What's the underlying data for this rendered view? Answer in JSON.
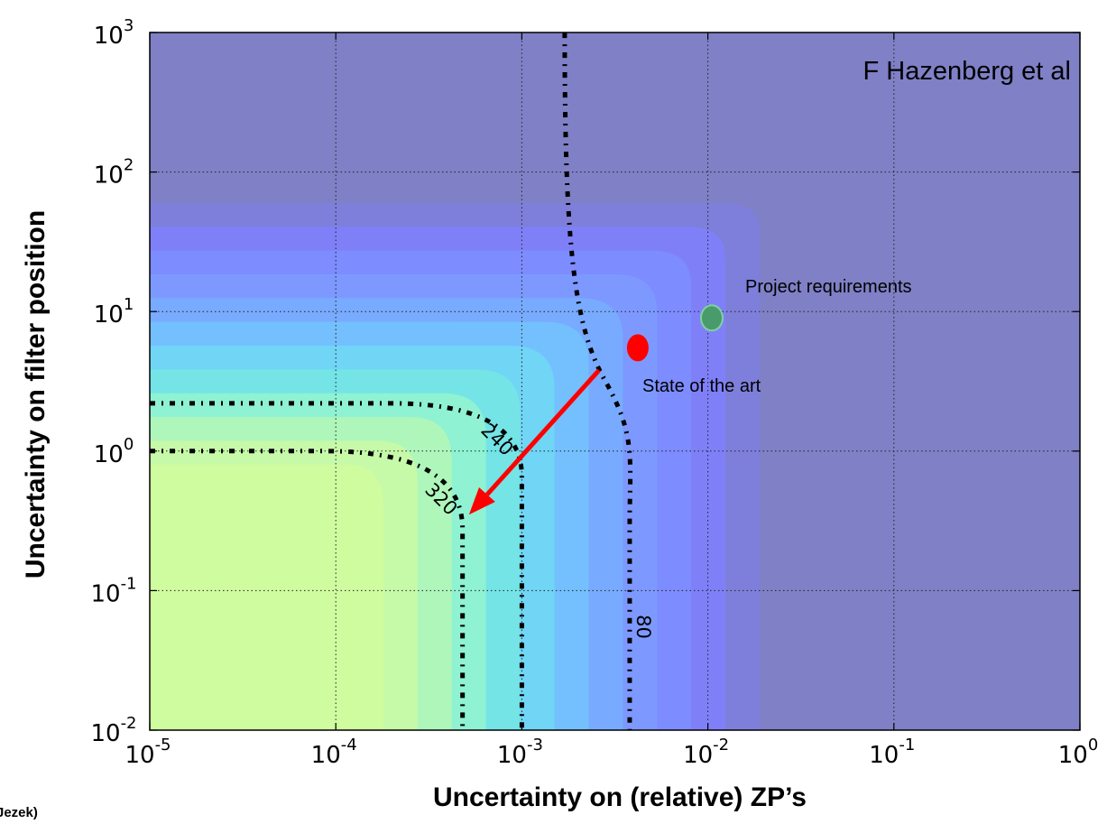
{
  "chart_data": {
    "type": "heatmap",
    "subtype": "filled contour plot, log-log axes",
    "title": "",
    "annotation_corner": "F Hazenberg et al",
    "xlabel": "Uncertainty on (relative) ZP’s",
    "ylabel": "Uncertainty on filter position",
    "xscale": "log",
    "yscale": "log",
    "xlim": [
      1e-05,
      1
    ],
    "ylim": [
      0.01,
      1000
    ],
    "grid": true,
    "x_tick_labels": [
      {
        "base": "10",
        "exp": "-5",
        "value": 1e-05
      },
      {
        "base": "10",
        "exp": "-4",
        "value": 0.0001
      },
      {
        "base": "10",
        "exp": "-3",
        "value": 0.001
      },
      {
        "base": "10",
        "exp": "-2",
        "value": 0.01
      },
      {
        "base": "10",
        "exp": "-1",
        "value": 0.1
      },
      {
        "base": "10",
        "exp": "0",
        "value": 1
      }
    ],
    "y_tick_labels": [
      {
        "base": "10",
        "exp": "-2",
        "value": 0.01
      },
      {
        "base": "10",
        "exp": "-1",
        "value": 0.1
      },
      {
        "base": "10",
        "exp": "0",
        "value": 1
      },
      {
        "base": "10",
        "exp": "1",
        "value": 10
      },
      {
        "base": "10",
        "exp": "2",
        "value": 100
      },
      {
        "base": "10",
        "exp": "3",
        "value": 1000
      }
    ],
    "contour_fill_colors_low_to_high": [
      "#7f80c6",
      "#7e7fda",
      "#7f80f8",
      "#7d8cff",
      "#7d99ff",
      "#78abff",
      "#74c0ff",
      "#71d5f6",
      "#74e4e6",
      "#8ff2d2",
      "#aff6bb",
      "#c6faa8",
      "#d0fca0"
    ],
    "contour_lines": [
      {
        "label": "80",
        "x_asymptote": 0.0038,
        "y_asymptote": 0.09
      },
      {
        "label": "240",
        "x_asymptote": 0.001,
        "y_asymptote": 2.2
      },
      {
        "label": "320",
        "x_asymptote": 0.00048,
        "y_asymptote": 1.0
      }
    ],
    "points": [
      {
        "label": "State of the art",
        "x": 0.0042,
        "y": 5.5,
        "color": "#ff0000"
      },
      {
        "label": "Project requirements",
        "x": 0.0105,
        "y": 9.0,
        "color": "#4a9b6c"
      }
    ],
    "arrow": {
      "from": {
        "x": 0.0026,
        "y": 3.8
      },
      "to": {
        "x": 0.00052,
        "y": 0.35
      },
      "color": "#ff0000"
    },
    "cutoff_text": "Jezek)"
  }
}
